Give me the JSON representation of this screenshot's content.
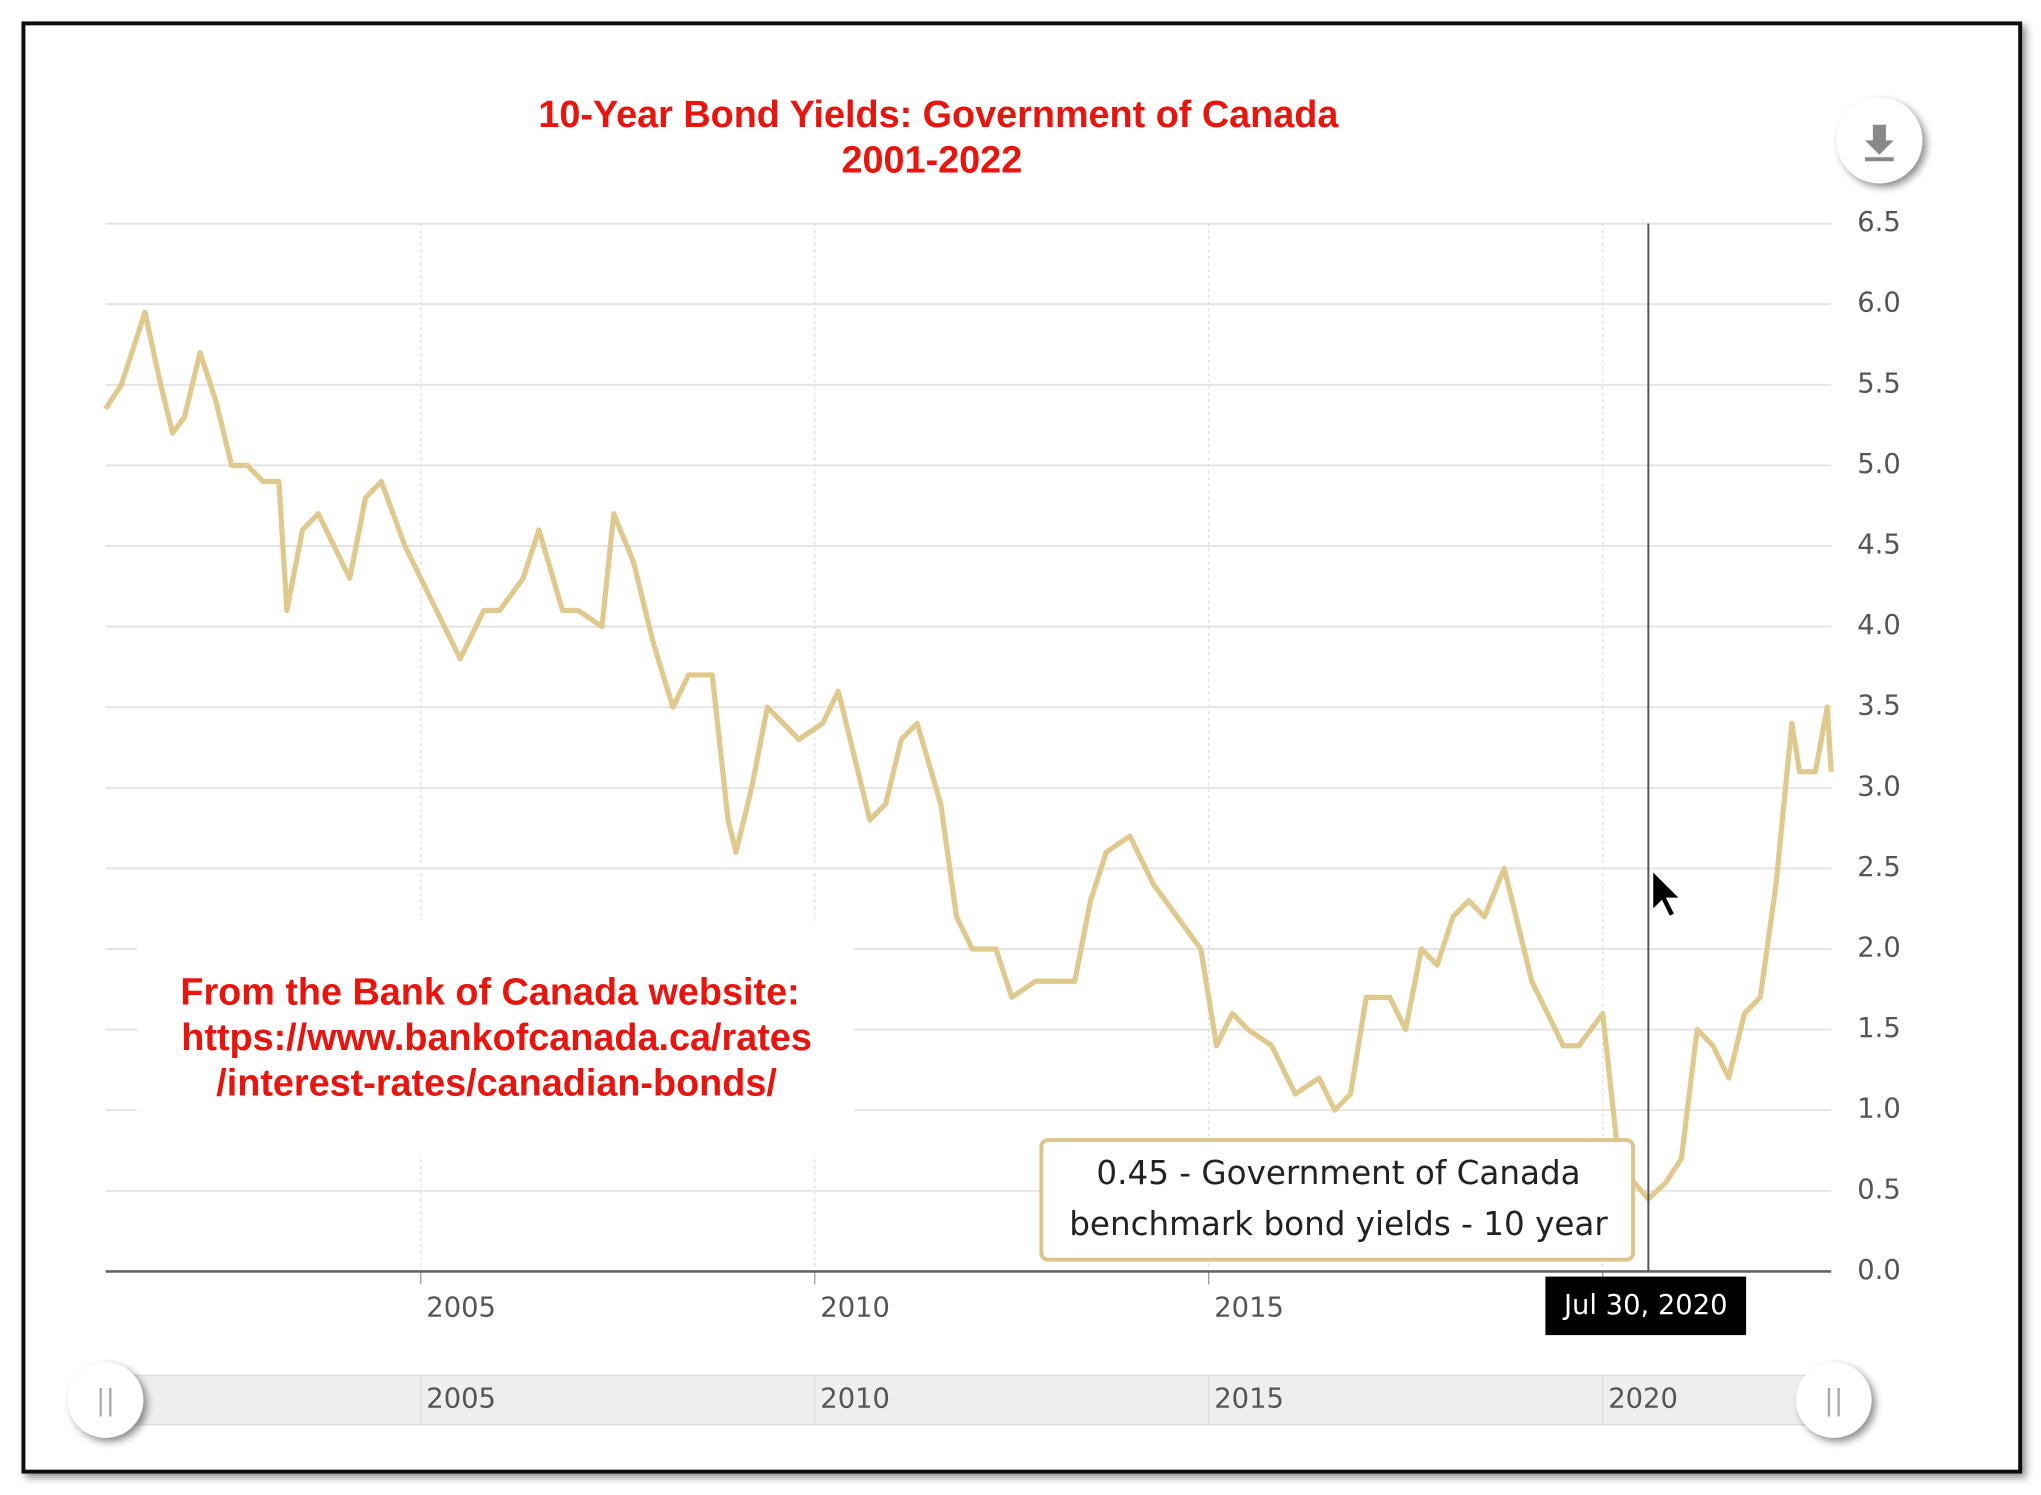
{
  "chart_data": {
    "type": "line",
    "title": [
      "10-Year Bond Yields: Government of Canada",
      "2001-2022"
    ],
    "annotation": [
      "From the Bank of Canada website:",
      "https://www.bankofcanada.ca/rates",
      "/interest-rates/canadian-bonds/"
    ],
    "x": [
      2001.0,
      2001.2,
      2001.4,
      2001.5,
      2001.7,
      2001.85,
      2002.0,
      2002.2,
      2002.4,
      2002.6,
      2002.8,
      2003.0,
      2003.2,
      2003.3,
      2003.5,
      2003.7,
      2003.9,
      2004.1,
      2004.3,
      2004.5,
      2004.8,
      2005.0,
      2005.2,
      2005.5,
      2005.8,
      2006.0,
      2006.3,
      2006.5,
      2006.8,
      2007.0,
      2007.3,
      2007.45,
      2007.7,
      2007.95,
      2008.2,
      2008.4,
      2008.7,
      2008.9,
      2009.0,
      2009.2,
      2009.4,
      2009.6,
      2009.8,
      2010.1,
      2010.3,
      2010.5,
      2010.7,
      2010.9,
      2011.1,
      2011.3,
      2011.6,
      2011.8,
      2012.0,
      2012.3,
      2012.5,
      2012.8,
      2013.0,
      2013.3,
      2013.5,
      2013.7,
      2014.0,
      2014.3,
      2014.6,
      2014.9,
      2015.1,
      2015.3,
      2015.5,
      2015.8,
      2016.1,
      2016.4,
      2016.6,
      2016.8,
      2017.0,
      2017.3,
      2017.5,
      2017.7,
      2017.9,
      2018.1,
      2018.3,
      2018.5,
      2018.75,
      2018.9,
      2019.1,
      2019.3,
      2019.5,
      2019.7,
      2020.0,
      2020.2,
      2020.4,
      2020.58,
      2020.8,
      2021.0,
      2021.2,
      2021.4,
      2021.6,
      2021.8,
      2022.0,
      2022.2,
      2022.4,
      2022.5,
      2022.7,
      2022.85,
      2022.9
    ],
    "series": [
      {
        "color": "#e0c98f",
        "values": [
          5.35,
          5.5,
          5.8,
          5.95,
          5.5,
          5.2,
          5.3,
          5.7,
          5.4,
          5.0,
          5.0,
          4.9,
          4.9,
          4.1,
          4.6,
          4.7,
          4.5,
          4.3,
          4.8,
          4.9,
          4.5,
          4.3,
          4.1,
          3.8,
          4.1,
          4.1,
          4.3,
          4.6,
          4.1,
          4.1,
          4.0,
          4.7,
          4.4,
          3.9,
          3.5,
          3.7,
          3.7,
          2.8,
          2.6,
          3.0,
          3.5,
          3.4,
          3.3,
          3.4,
          3.6,
          3.2,
          2.8,
          2.9,
          3.3,
          3.4,
          2.9,
          2.2,
          2.0,
          2.0,
          1.7,
          1.8,
          1.8,
          1.8,
          2.3,
          2.6,
          2.7,
          2.4,
          2.2,
          2.0,
          1.4,
          1.6,
          1.5,
          1.4,
          1.1,
          1.2,
          1.0,
          1.1,
          1.7,
          1.7,
          1.5,
          2.0,
          1.9,
          2.2,
          2.3,
          2.2,
          2.5,
          2.2,
          1.8,
          1.6,
          1.4,
          1.4,
          1.6,
          0.7,
          0.55,
          0.45,
          0.55,
          0.7,
          1.5,
          1.4,
          1.2,
          1.6,
          1.7,
          2.4,
          3.4,
          3.1,
          3.1,
          3.5,
          3.1
        ]
      }
    ],
    "xlim": [
      2001.0,
      2022.9
    ],
    "xticks": [
      2005,
      2010,
      2015,
      2020
    ],
    "ylim": [
      0,
      6.5
    ],
    "yticks": [
      {
        "value": 0,
        "label": "0.0"
      },
      0.5,
      {
        "value": 1,
        "label": "1.0"
      },
      1.5,
      {
        "value": 2,
        "label": "2.0"
      },
      2.5,
      {
        "value": 3,
        "label": "3.0"
      },
      3.5,
      {
        "value": 4,
        "label": "4.0"
      },
      4.5,
      {
        "value": 5,
        "label": "5.0"
      },
      5.5,
      {
        "value": 6,
        "label": "6.0"
      },
      6.5
    ],
    "grid": true,
    "tooltip": {
      "x": 2020.58,
      "date": "Jul 30, 2020",
      "lines": [
        "0.45 - Government of Canada",
        "benchmark bond yields - 10 year"
      ]
    }
  }
}
